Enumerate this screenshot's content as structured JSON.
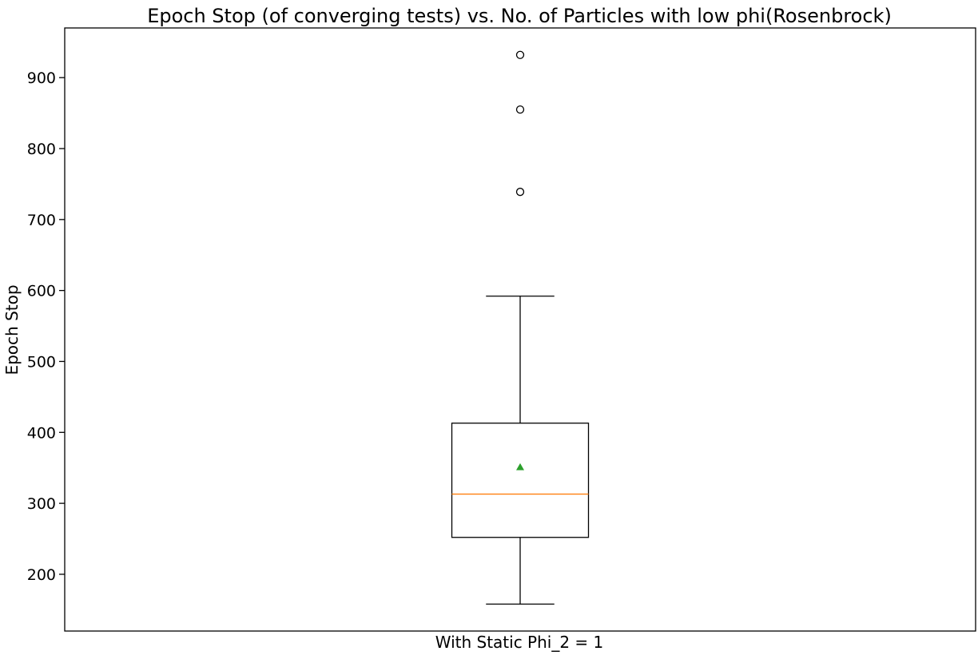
{
  "chart_data": {
    "type": "box",
    "title": "Epoch Stop (of converging tests) vs. No. of Particles with low phi(Rosenbrock)",
    "xlabel": "With Static Phi_2 = 1",
    "ylabel": "Epoch Stop",
    "ylim": [
      120,
      970
    ],
    "yticks": [
      200,
      300,
      400,
      500,
      600,
      700,
      800,
      900
    ],
    "grid": false,
    "boxes": [
      {
        "whisker_low": 158,
        "q1": 252,
        "median": 313,
        "mean": 351,
        "q3": 413,
        "whisker_high": 592,
        "outliers": [
          739,
          855,
          932
        ]
      }
    ],
    "colors": {
      "box": "#000000",
      "median": "#ff7f0e",
      "mean": "#2ca02c",
      "outlier": "#000000"
    }
  }
}
